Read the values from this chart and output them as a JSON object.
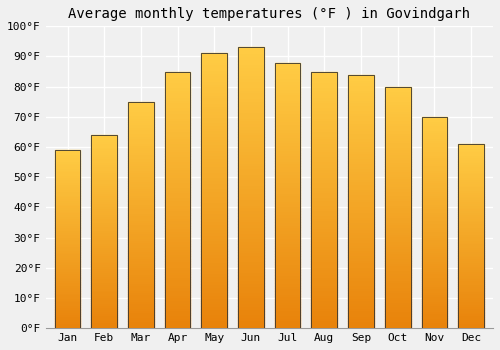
{
  "title": "Average monthly temperatures (°F ) in Govindgarh",
  "months": [
    "Jan",
    "Feb",
    "Mar",
    "Apr",
    "May",
    "Jun",
    "Jul",
    "Aug",
    "Sep",
    "Oct",
    "Nov",
    "Dec"
  ],
  "values": [
    59,
    64,
    75,
    85,
    91,
    93,
    88,
    85,
    84,
    80,
    70,
    61
  ],
  "bar_color_bottom": "#E8820A",
  "bar_color_mid": "#F5A623",
  "bar_color_top": "#FFCC44",
  "bar_edge_color": "#333333",
  "ylim": [
    0,
    100
  ],
  "yticks": [
    0,
    10,
    20,
    30,
    40,
    50,
    60,
    70,
    80,
    90,
    100
  ],
  "ytick_labels": [
    "0°F",
    "10°F",
    "20°F",
    "30°F",
    "40°F",
    "50°F",
    "60°F",
    "70°F",
    "80°F",
    "90°F",
    "100°F"
  ],
  "bg_color": "#f0f0f0",
  "grid_color": "#ffffff",
  "title_fontsize": 10,
  "tick_fontsize": 8,
  "bar_width": 0.7,
  "gradient_steps": 100
}
